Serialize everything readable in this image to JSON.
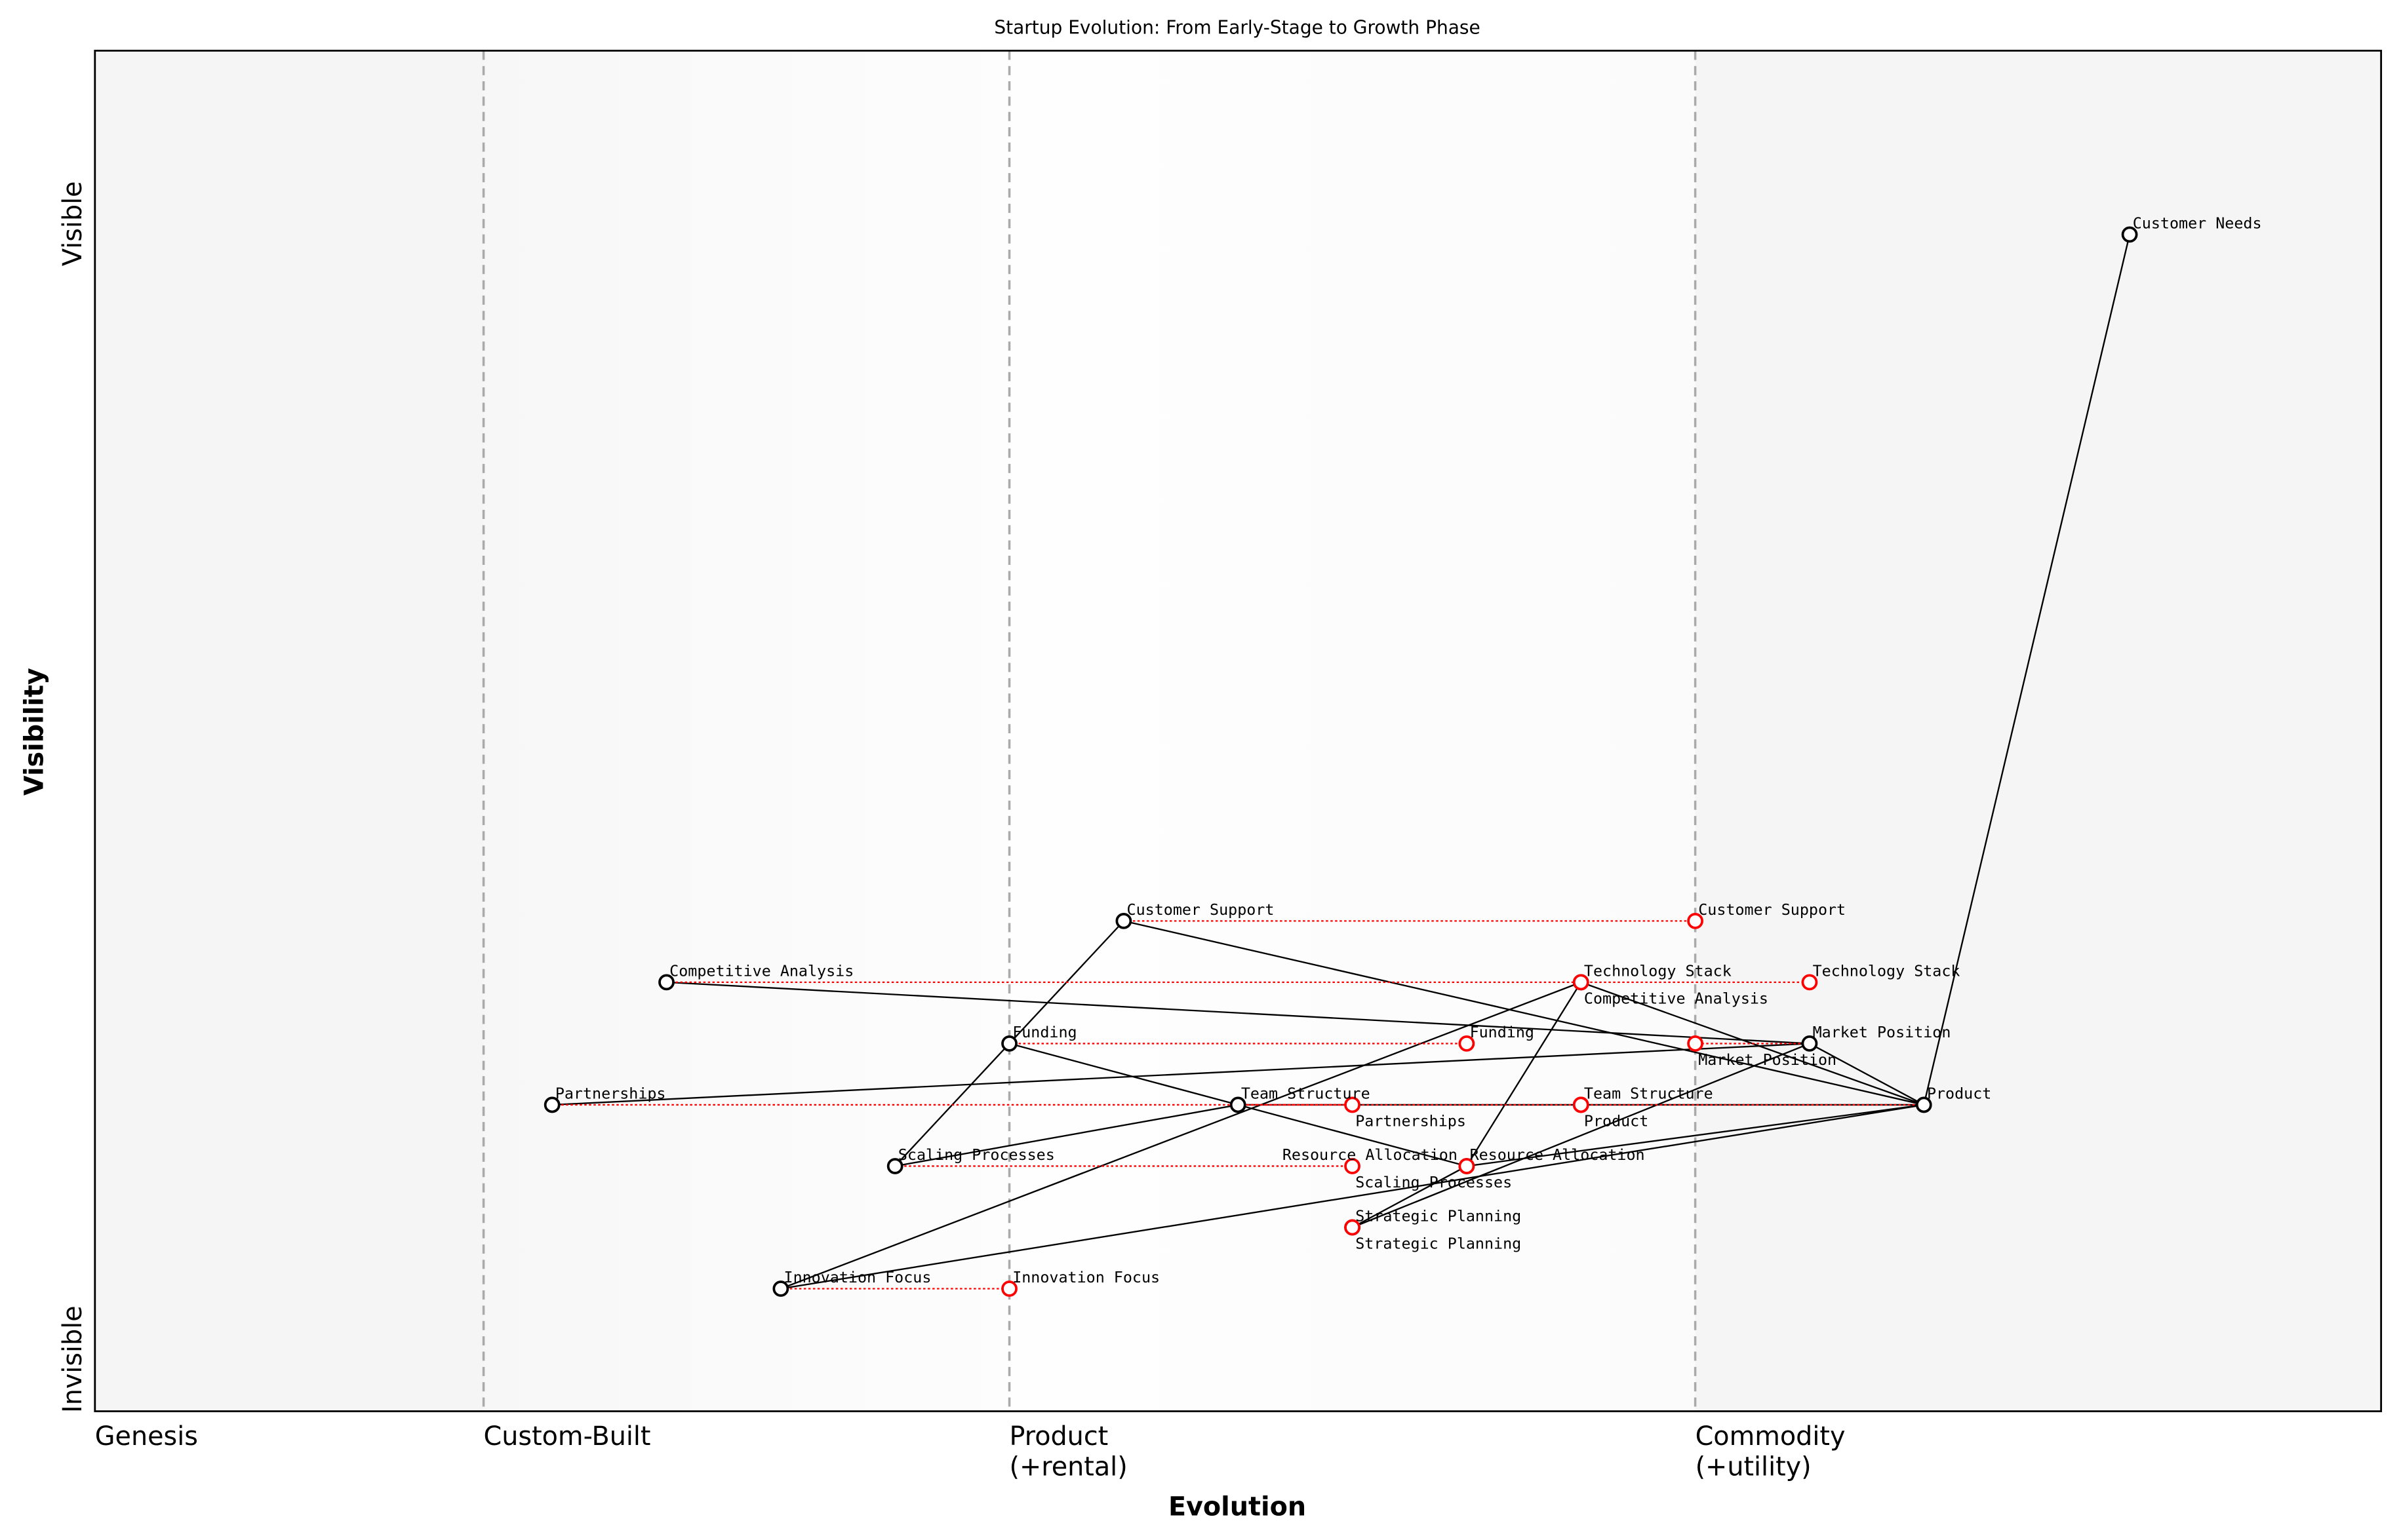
{
  "chart_data": {
    "type": "scatter",
    "subtype": "wardley-map",
    "title": "Startup Evolution: From Early-Stage to Growth Phase",
    "xlabel": "Evolution",
    "ylabel": "Visibility",
    "xlim": [
      0,
      1
    ],
    "ylim": [
      0,
      1.11
    ],
    "grid": false,
    "x_stages": [
      {
        "label": "Genesis",
        "x": 0
      },
      {
        "label": "Custom-Built",
        "x": 0.17
      },
      {
        "label": "Product\n(+rental)",
        "x": 0.4
      },
      {
        "label": "Commodity\n(+utility)",
        "x": 0.7
      }
    ],
    "y_labels": {
      "top": "Visible",
      "bottom": "Invisible"
    },
    "colors": {
      "component": "#000000",
      "evolved": "#ff0000",
      "link": "#000000",
      "stage_line": "#aaaaaa",
      "band": "#f5f5f5"
    },
    "components": [
      {
        "name": "Customer Needs",
        "evolution": 0.89,
        "visibility": 0.96
      },
      {
        "name": "Customer Support",
        "evolution": 0.45,
        "visibility": 0.4
      },
      {
        "name": "Competitive Analysis",
        "evolution": 0.25,
        "visibility": 0.35
      },
      {
        "name": "Technology Stack",
        "evolution": 0.65,
        "visibility": 0.35
      },
      {
        "name": "Funding",
        "evolution": 0.4,
        "visibility": 0.3
      },
      {
        "name": "Market Position",
        "evolution": 0.75,
        "visibility": 0.3
      },
      {
        "name": "Partnerships",
        "evolution": 0.2,
        "visibility": 0.25
      },
      {
        "name": "Team Structure",
        "evolution": 0.5,
        "visibility": 0.25
      },
      {
        "name": "Product",
        "evolution": 0.8,
        "visibility": 0.25
      },
      {
        "name": "Scaling Processes",
        "evolution": 0.35,
        "visibility": 0.2
      },
      {
        "name": "Resource Allocation",
        "evolution": 0.6,
        "visibility": 0.2
      },
      {
        "name": "Strategic Planning",
        "evolution": 0.55,
        "visibility": 0.15
      },
      {
        "name": "Innovation Focus",
        "evolution": 0.3,
        "visibility": 0.1
      }
    ],
    "evolutions": [
      {
        "name": "Customer Support",
        "to": 0.7
      },
      {
        "name": "Competitive Analysis",
        "to": 0.65
      },
      {
        "name": "Technology Stack",
        "to": 0.75
      },
      {
        "name": "Funding",
        "to": 0.6
      },
      {
        "name": "Market Position",
        "to": 0.7
      },
      {
        "name": "Partnerships",
        "to": 0.55
      },
      {
        "name": "Team Structure",
        "to": 0.65
      },
      {
        "name": "Product",
        "to": 0.65
      },
      {
        "name": "Scaling Processes",
        "to": 0.55
      },
      {
        "name": "Resource Allocation",
        "to": 0.6
      },
      {
        "name": "Strategic Planning",
        "to": 0.55
      },
      {
        "name": "Innovation Focus",
        "to": 0.4
      }
    ],
    "links": [
      [
        "Customer Needs",
        "Product"
      ],
      [
        "Product",
        "Customer Support"
      ],
      [
        "Product",
        "Technology Stack"
      ],
      [
        "Product",
        "Market Position"
      ],
      [
        "Product",
        "Team Structure"
      ],
      [
        "Product",
        "Resource Allocation"
      ],
      [
        "Product",
        "Innovation Focus"
      ],
      [
        "Customer Support",
        "Funding"
      ],
      [
        "Funding",
        "Scaling Processes"
      ],
      [
        "Funding",
        "Resource Allocation"
      ],
      [
        "Competitive Analysis",
        "Market Position"
      ],
      [
        "Partnerships",
        "Market Position"
      ],
      [
        "Scaling Processes",
        "Team Structure"
      ],
      [
        "Innovation Focus",
        "Technology Stack"
      ],
      [
        "Technology Stack",
        "Resource Allocation"
      ],
      [
        "Resource Allocation",
        "Strategic Planning"
      ],
      [
        "Strategic Planning",
        "Market Position"
      ]
    ]
  }
}
